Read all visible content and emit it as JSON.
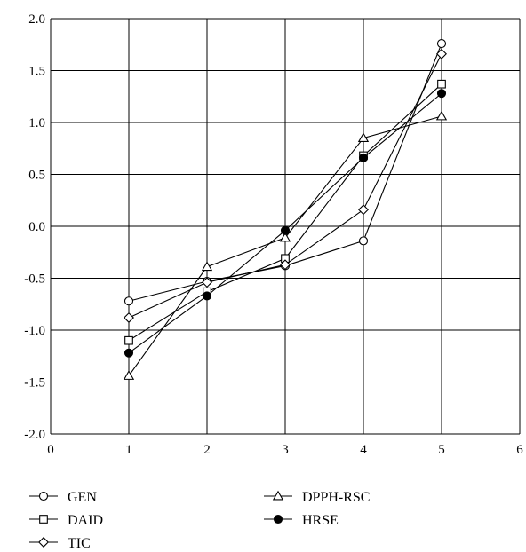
{
  "chart_data": {
    "type": "line",
    "title": "",
    "xlabel": "",
    "ylabel": "",
    "xlim": [
      0,
      6
    ],
    "ylim": [
      -2.0,
      2.0
    ],
    "x_ticks": [
      0,
      1,
      2,
      3,
      4,
      5,
      6
    ],
    "x_tick_labels": [
      "0",
      "1",
      "2",
      "3",
      "4",
      "5",
      "6"
    ],
    "y_ticks": [
      2.0,
      1.5,
      1.0,
      0.5,
      0.0,
      -0.5,
      -1.0,
      -1.5,
      -2.0
    ],
    "y_tick_labels": [
      "2.0",
      "1.5",
      "1.0",
      "0.5",
      "0.0",
      "-0.5",
      "-1.0",
      "-1.5",
      "-2.0"
    ],
    "grid": true,
    "legend_position": "bottom",
    "x": [
      1,
      2,
      3,
      4,
      5
    ],
    "series": [
      {
        "name": "GEN",
        "marker": "circle-open",
        "values": [
          -0.72,
          -0.53,
          -0.38,
          -0.14,
          1.76
        ]
      },
      {
        "name": "DAID",
        "marker": "square-open",
        "values": [
          -1.1,
          -0.63,
          -0.31,
          0.68,
          1.37
        ]
      },
      {
        "name": "TIC",
        "marker": "diamond-open",
        "values": [
          -0.88,
          -0.54,
          -0.37,
          0.16,
          1.66
        ]
      },
      {
        "name": "DPPH-RSC",
        "marker": "triangle-open",
        "values": [
          -1.44,
          -0.39,
          -0.11,
          0.85,
          1.06
        ]
      },
      {
        "name": "HRSE",
        "marker": "circle-filled",
        "values": [
          -1.22,
          -0.67,
          -0.04,
          0.66,
          1.28
        ]
      }
    ]
  }
}
